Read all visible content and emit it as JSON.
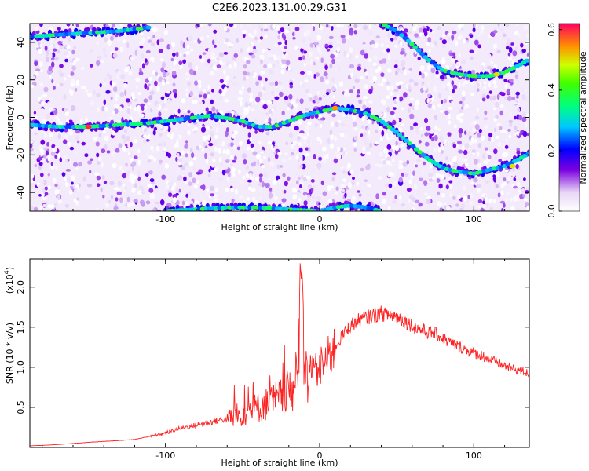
{
  "title": "C2E6.2023.131.00.29.G31",
  "colors": {
    "axis": "#000000",
    "snr_line": "#ff2222",
    "background": "#ffffff"
  },
  "chart_data": [
    {
      "type": "heatmap",
      "name": "spectrogram",
      "xlabel": "Height of straight line (km)",
      "ylabel": "Frequency (Hz)",
      "xlim": [
        -188,
        136
      ],
      "ylim": [
        -50,
        50
      ],
      "x_ticks": [
        -100,
        0,
        100
      ],
      "x_tick_labels": [
        "-100",
        "0",
        "100"
      ],
      "y_ticks": [
        -40,
        -20,
        0,
        20,
        40
      ],
      "y_tick_labels": [
        "-40",
        "-20",
        "0",
        "20",
        "40"
      ],
      "colorbar": {
        "label": "Normalized spectral amplitude",
        "range": [
          0.0,
          0.62
        ],
        "ticks": [
          0.0,
          0.2,
          0.4,
          0.6
        ],
        "tick_labels": [
          "0.0",
          "0.2",
          "0.4",
          "0.6"
        ]
      },
      "traces": [
        {
          "x": [
            -188,
            -170,
            -150,
            -130,
            -110,
            -90,
            -70,
            -50,
            -40,
            -30,
            -20,
            -10,
            0,
            10,
            20,
            30,
            40,
            50,
            60,
            70,
            80,
            90,
            100,
            110,
            120,
            130,
            136
          ],
          "y": [
            -4,
            -5,
            -5,
            -4,
            -3,
            -1,
            1,
            -2,
            -5,
            -5,
            -2,
            1,
            3,
            5,
            4,
            2,
            -2,
            -8,
            -15,
            -22,
            -27,
            -29,
            -30,
            -28,
            -26,
            -22,
            -19
          ]
        },
        {
          "x": [
            -188,
            -170,
            -150,
            -130,
            -120,
            -110
          ],
          "y": [
            43,
            44,
            45,
            46,
            47,
            48
          ]
        },
        {
          "x": [
            40,
            50,
            60,
            70,
            80,
            90,
            100,
            110,
            120,
            130,
            136
          ],
          "y": [
            50,
            46,
            39,
            31,
            25,
            23,
            22,
            22,
            24,
            28,
            31
          ]
        },
        {
          "x": [
            -100,
            -80,
            -60,
            -40,
            -20,
            0,
            10,
            20,
            30,
            40
          ],
          "y": [
            -50,
            -49,
            -48,
            -48,
            -49,
            -50,
            -48,
            -47,
            -48,
            -50
          ]
        }
      ]
    },
    {
      "type": "line",
      "name": "snr",
      "xlabel": "Height of straight line (km)",
      "ylabel": "SNR (10 * v/v)",
      "y_multiplier_label": "(x10",
      "y_multiplier_exp": "4",
      "y_multiplier_close": ")",
      "xlim": [
        -188,
        136
      ],
      "ylim": [
        0.0,
        2.35
      ],
      "x_ticks": [
        -100,
        0,
        100
      ],
      "x_tick_labels": [
        "-100",
        "0",
        "100"
      ],
      "y_ticks": [
        0.5,
        1.0,
        1.5,
        2.0
      ],
      "y_tick_labels": [
        "0.5",
        "1.0",
        "1.5",
        "2.0"
      ],
      "series": [
        {
          "x": [
            -188,
            -175,
            -160,
            -145,
            -135,
            -120,
            -110,
            -100,
            -90,
            -80,
            -70,
            -60,
            -50,
            -40,
            -30,
            -25,
            -20,
            -15,
            -12,
            -10,
            -8,
            -5,
            0,
            5,
            10,
            15,
            20,
            25,
            30,
            35,
            40,
            45,
            50,
            55,
            60,
            65,
            70,
            75,
            80,
            85,
            90,
            95,
            100,
            105,
            110,
            115,
            120,
            125,
            130,
            136
          ],
          "y": [
            0.02,
            0.03,
            0.05,
            0.07,
            0.08,
            0.1,
            0.14,
            0.18,
            0.24,
            0.28,
            0.32,
            0.36,
            0.42,
            0.5,
            0.58,
            0.62,
            0.7,
            0.78,
            2.0,
            1.0,
            0.85,
            0.9,
            1.0,
            1.1,
            1.25,
            1.4,
            1.52,
            1.58,
            1.62,
            1.65,
            1.67,
            1.66,
            1.63,
            1.58,
            1.52,
            1.47,
            1.44,
            1.42,
            1.36,
            1.3,
            1.26,
            1.22,
            1.18,
            1.15,
            1.1,
            1.06,
            1.02,
            0.98,
            0.96,
            0.92
          ]
        }
      ]
    }
  ]
}
